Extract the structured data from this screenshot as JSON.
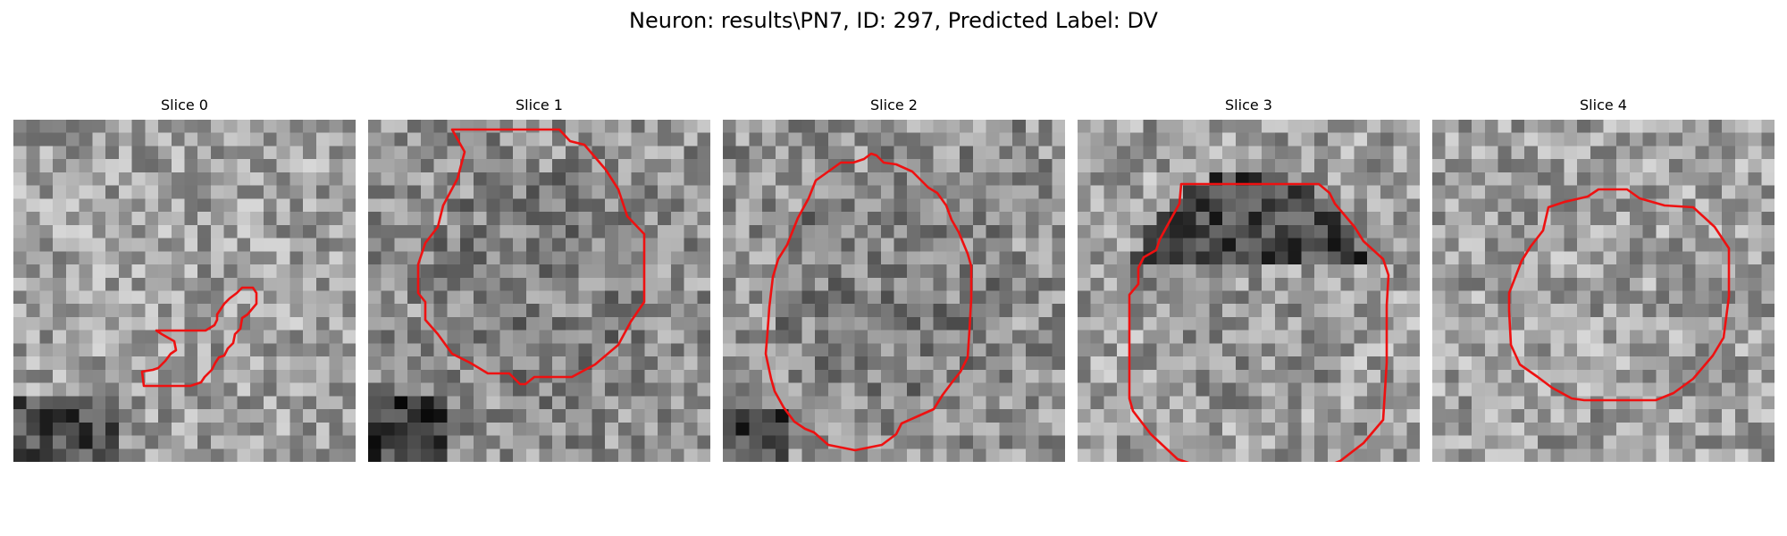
{
  "title": "Neuron: results\\PN7, ID: 297, Predicted Label: DV",
  "contour_color": "#ee1111",
  "colormap": "gray",
  "panels": [
    {
      "title": "Slice 0",
      "tone": "light-noisy"
    },
    {
      "title": "Slice 1",
      "tone": "mid-gray"
    },
    {
      "title": "Slice 2",
      "tone": "mid-gray"
    },
    {
      "title": "Slice 3",
      "tone": "dark-center"
    },
    {
      "title": "Slice 4",
      "tone": "light-noisy"
    }
  ]
}
